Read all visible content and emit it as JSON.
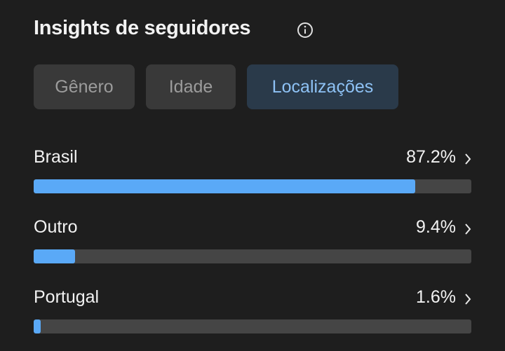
{
  "header": {
    "title": "Insights de seguidores"
  },
  "tabs": {
    "items": [
      "Gênero",
      "Idade",
      "Localizações"
    ],
    "active": 2
  },
  "chart_data": {
    "type": "bar",
    "orientation": "horizontal",
    "categories": [
      "Brasil",
      "Outro",
      "Portugal"
    ],
    "values": [
      87.2,
      9.4,
      1.6
    ],
    "value_labels": [
      "87.2%",
      "9.4%",
      "1.6%"
    ],
    "xlim": [
      0,
      100
    ],
    "color": "#5aa9f7"
  }
}
